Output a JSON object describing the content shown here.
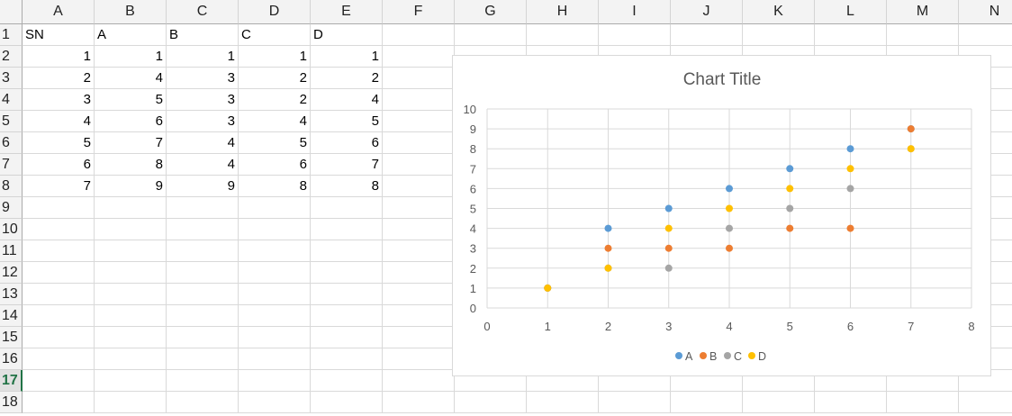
{
  "columns": [
    "A",
    "B",
    "C",
    "D",
    "E",
    "F",
    "G",
    "H",
    "I",
    "J",
    "K",
    "L",
    "M",
    "N"
  ],
  "rows": [
    "1",
    "2",
    "3",
    "4",
    "5",
    "6",
    "7",
    "8",
    "9",
    "10",
    "11",
    "12",
    "13",
    "14",
    "15",
    "16",
    "17",
    "18"
  ],
  "selected_row": "17",
  "sheet": {
    "headers": [
      "SN",
      "A",
      "B",
      "C",
      "D"
    ],
    "data": [
      [
        "1",
        "1",
        "1",
        "1",
        "1"
      ],
      [
        "2",
        "4",
        "3",
        "2",
        "2"
      ],
      [
        "3",
        "5",
        "3",
        "2",
        "4"
      ],
      [
        "4",
        "6",
        "3",
        "4",
        "5"
      ],
      [
        "5",
        "7",
        "4",
        "5",
        "6"
      ],
      [
        "6",
        "8",
        "4",
        "6",
        "7"
      ],
      [
        "7",
        "9",
        "9",
        "8",
        "8"
      ]
    ]
  },
  "chart_data": {
    "type": "scatter",
    "title": "Chart Title",
    "xlim": [
      0,
      8
    ],
    "ylim": [
      0,
      10
    ],
    "x_ticks": [
      "0",
      "1",
      "2",
      "3",
      "4",
      "5",
      "6",
      "7",
      "8"
    ],
    "y_ticks": [
      "0",
      "1",
      "2",
      "3",
      "4",
      "5",
      "6",
      "7",
      "8",
      "9",
      "10"
    ],
    "grid": true,
    "legend_position": "bottom",
    "series": [
      {
        "name": "A",
        "color": "#5b9bd5",
        "points": [
          [
            1,
            1
          ],
          [
            2,
            4
          ],
          [
            3,
            5
          ],
          [
            4,
            6
          ],
          [
            5,
            7
          ],
          [
            6,
            8
          ],
          [
            7,
            9
          ]
        ]
      },
      {
        "name": "B",
        "color": "#ed7d31",
        "points": [
          [
            1,
            1
          ],
          [
            2,
            3
          ],
          [
            3,
            3
          ],
          [
            4,
            3
          ],
          [
            5,
            4
          ],
          [
            6,
            4
          ],
          [
            7,
            9
          ]
        ]
      },
      {
        "name": "C",
        "color": "#a5a5a5",
        "points": [
          [
            1,
            1
          ],
          [
            2,
            2
          ],
          [
            3,
            2
          ],
          [
            4,
            4
          ],
          [
            5,
            5
          ],
          [
            6,
            6
          ],
          [
            7,
            8
          ]
        ]
      },
      {
        "name": "D",
        "color": "#ffc000",
        "points": [
          [
            1,
            1
          ],
          [
            2,
            2
          ],
          [
            3,
            4
          ],
          [
            4,
            5
          ],
          [
            5,
            6
          ],
          [
            6,
            7
          ],
          [
            7,
            8
          ]
        ]
      }
    ]
  }
}
